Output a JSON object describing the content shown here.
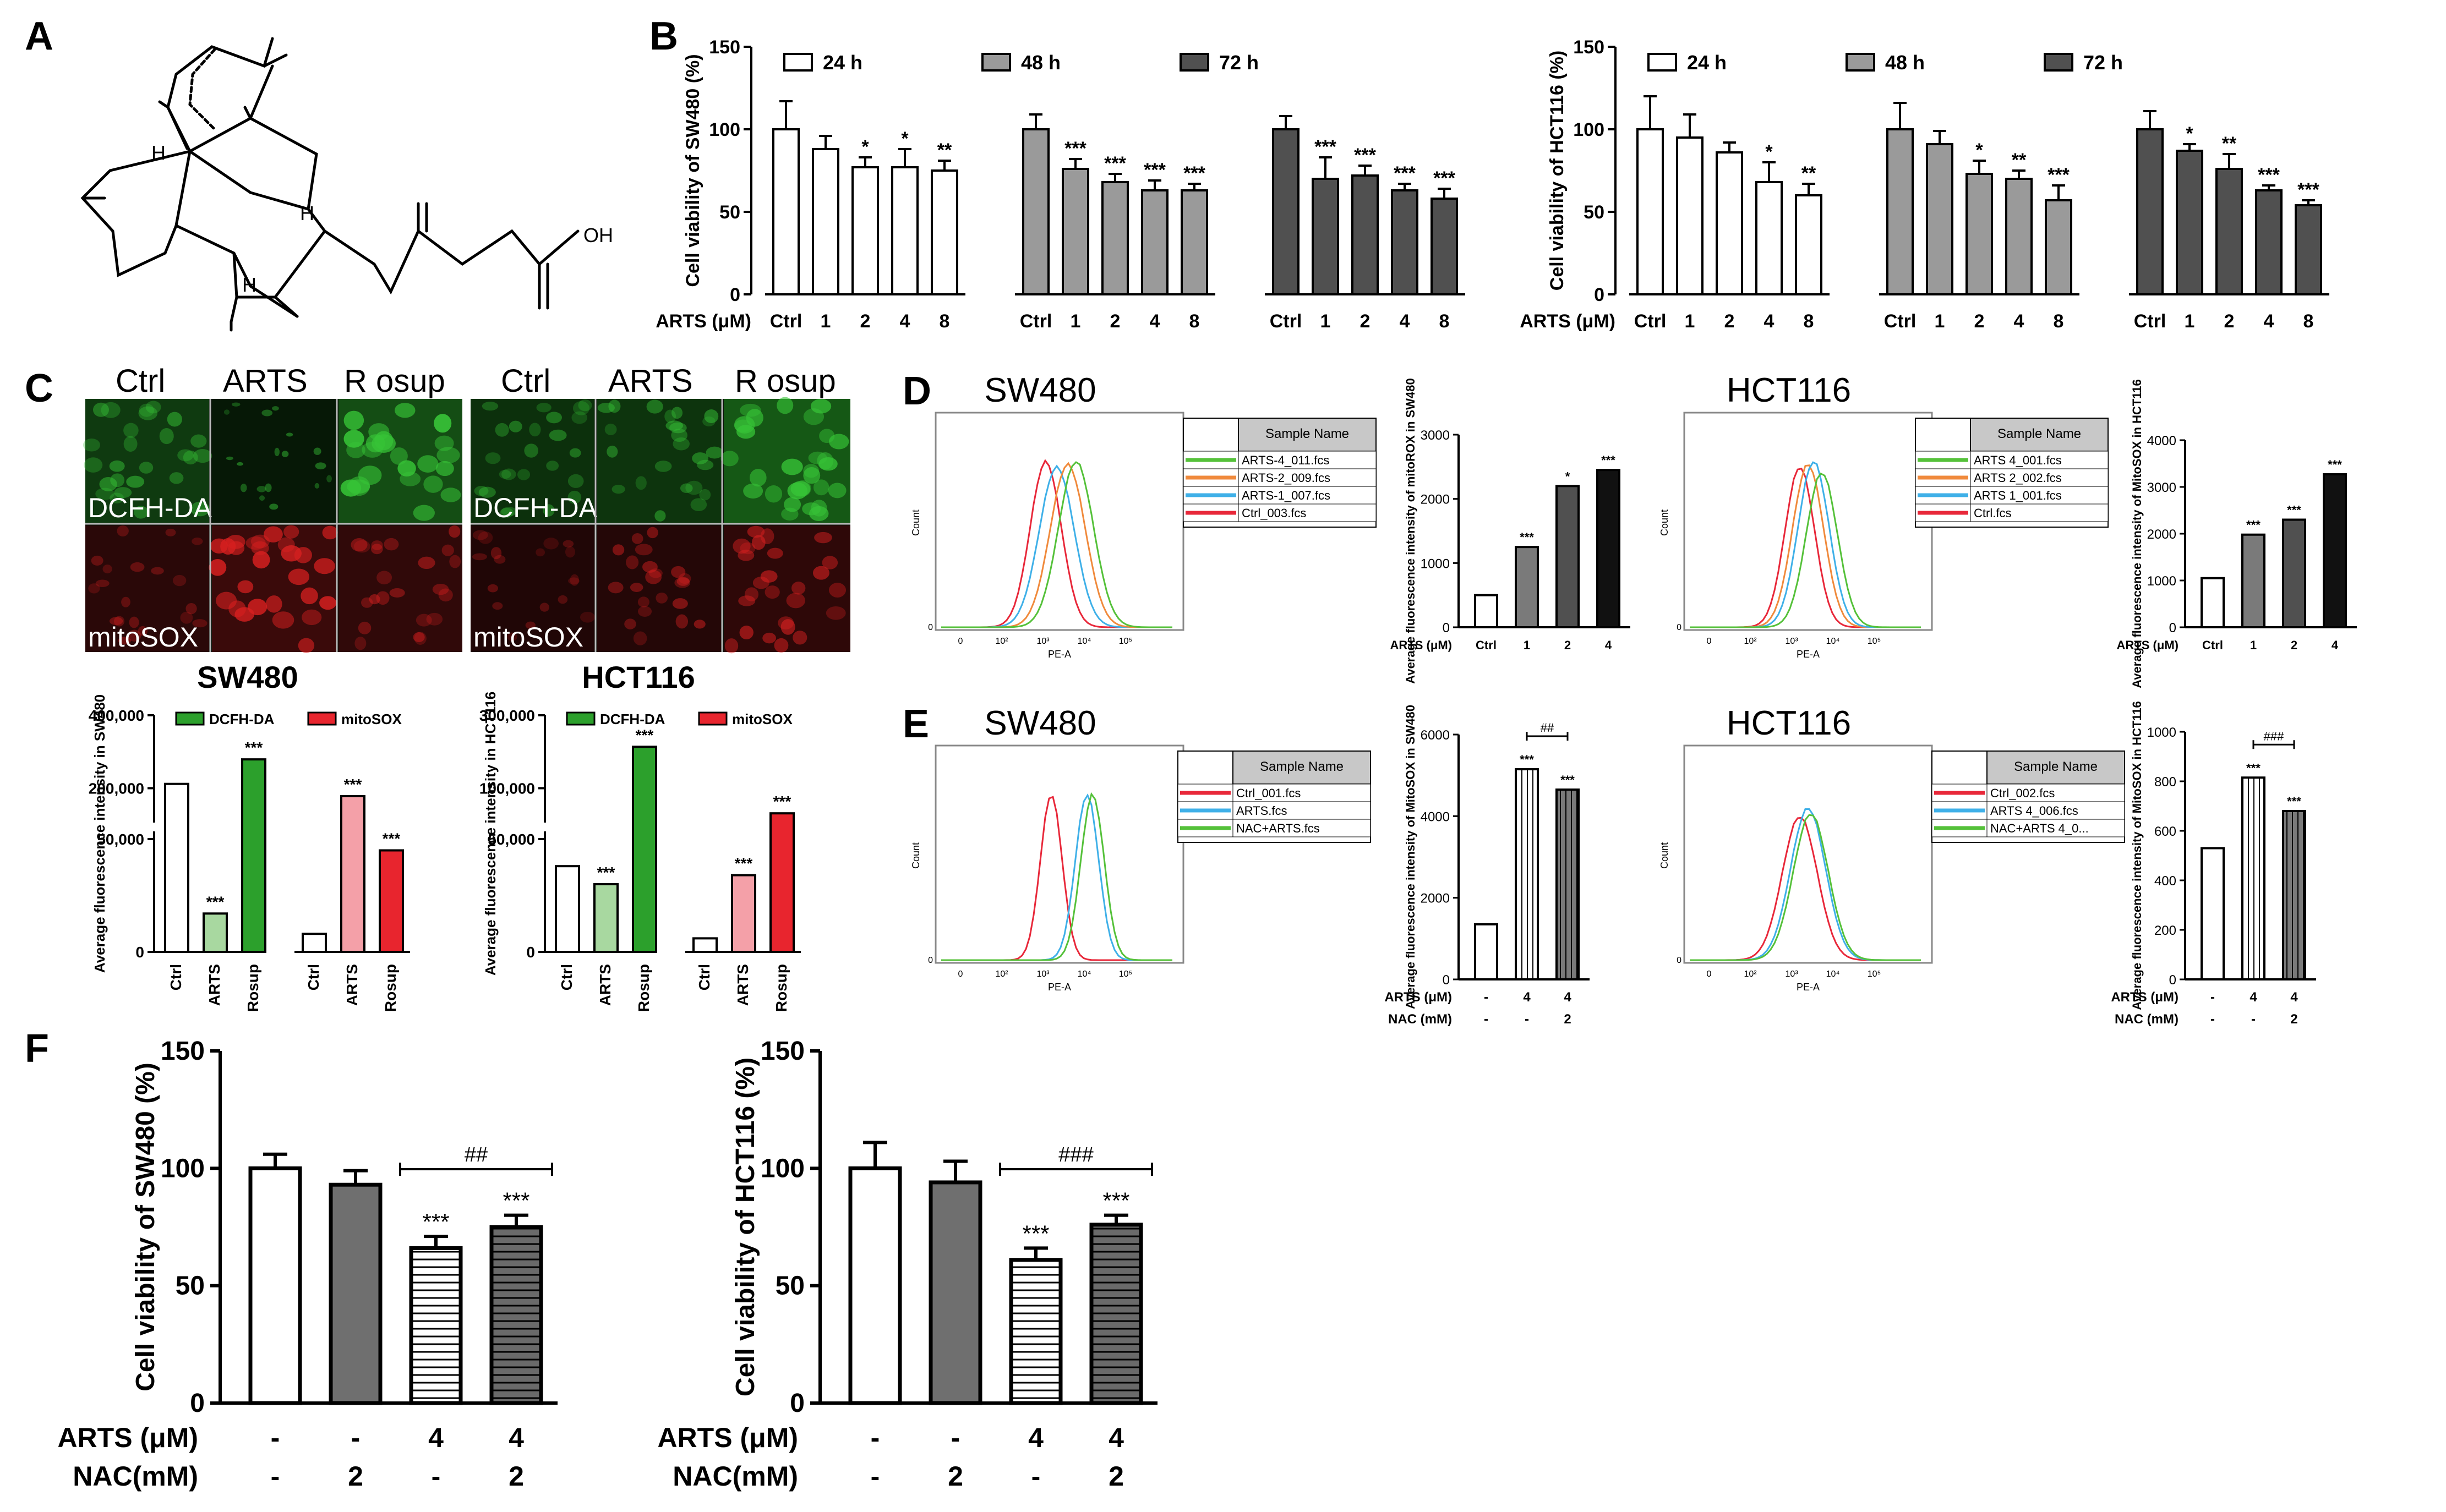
{
  "figure": {
    "panel_letters": [
      "A",
      "B",
      "C",
      "D",
      "E",
      "F"
    ],
    "colors": {
      "white_bar": "#ffffff",
      "light_gray": "#9a9a9a",
      "mid_gray": "#7a7a7a",
      "dark_gray": "#505050",
      "black_bar": "#111111",
      "dcfh_green": "#2ca02c",
      "light_green": "#a8d8a0",
      "mitosox_red": "#e8252e",
      "pink": "#f4a0a8",
      "cyto_green": "#37c437",
      "cyto_red": "#d82020"
    }
  },
  "panel_a": {
    "labels": {
      "h1": "H",
      "h2": "H",
      "h3": "H",
      "oh": "OH"
    }
  },
  "panel_b": {
    "legend": [
      "24 h",
      "48 h",
      "72 h"
    ],
    "x_prefix": "ARTS (μM)",
    "charts": [
      {
        "ylabel": "Cell viability of SW480 (%)",
        "yticks": [
          "0",
          "50",
          "100",
          "150"
        ],
        "ylim": [
          0,
          150
        ],
        "categories": [
          "Ctrl",
          "1",
          "2",
          "4",
          "8"
        ],
        "groups": [
          {
            "name": "24 h",
            "values": [
              100,
              88,
              77,
              77,
              75
            ],
            "errors": [
              17,
              8,
              6,
              11,
              6
            ],
            "sig": [
              "",
              "",
              "*",
              "*",
              "**"
            ]
          },
          {
            "name": "48 h",
            "values": [
              100,
              76,
              68,
              63,
              63
            ],
            "errors": [
              9,
              6,
              5,
              6,
              4
            ],
            "sig": [
              "",
              "***",
              "***",
              "***",
              "***"
            ]
          },
          {
            "name": "72 h",
            "values": [
              100,
              70,
              72,
              63,
              58
            ],
            "errors": [
              8,
              13,
              6,
              4,
              6
            ],
            "sig": [
              "",
              "***",
              "***",
              "***",
              "***"
            ]
          }
        ]
      },
      {
        "ylabel": "Cell viability of HCT116 (%)",
        "yticks": [
          "0",
          "50",
          "100",
          "150"
        ],
        "ylim": [
          0,
          150
        ],
        "categories": [
          "Ctrl",
          "1",
          "2",
          "4",
          "8"
        ],
        "groups": [
          {
            "name": "24 h",
            "values": [
              100,
              95,
              86,
              68,
              60
            ],
            "errors": [
              20,
              14,
              6,
              12,
              7
            ],
            "sig": [
              "",
              "",
              "",
              "*",
              "**"
            ]
          },
          {
            "name": "48 h",
            "values": [
              100,
              91,
              73,
              70,
              57
            ],
            "errors": [
              16,
              8,
              8,
              5,
              9
            ],
            "sig": [
              "",
              "",
              "*",
              "**",
              "***"
            ]
          },
          {
            "name": "72 h",
            "values": [
              100,
              87,
              76,
              63,
              54
            ],
            "errors": [
              11,
              4,
              9,
              3,
              3
            ],
            "sig": [
              "",
              "*",
              "**",
              "***",
              "***"
            ]
          }
        ]
      }
    ]
  },
  "panel_c": {
    "left": {
      "headers": [
        "Ctrl",
        "ARTS",
        "R osup"
      ],
      "row_labels": [
        "DCFH-DA",
        "mitoSOX"
      ],
      "chart_title": "SW480",
      "legend": [
        "DCFH-DA",
        "mitoSOX"
      ],
      "ylabel": "Average fluorescence intensity in SW480",
      "yticks": [
        "0",
        "50,000",
        "200,000",
        "400,000"
      ],
      "categories": [
        "Ctrl",
        "ARTS",
        "Rosup",
        "Ctrl",
        "ARTS",
        "Rosup"
      ],
      "values": [
        230000,
        17000,
        310000,
        8000,
        190000,
        45000
      ],
      "sig": [
        "",
        "***",
        "***",
        "",
        "***",
        "***"
      ]
    },
    "right": {
      "headers": [
        "Ctrl",
        "ARTS",
        "R osup"
      ],
      "row_labels": [
        "DCFH-DA",
        "mitoSOX"
      ],
      "chart_title": "HCT116",
      "legend": [
        "DCFH-DA",
        "mitoSOX"
      ],
      "ylabel": "Average fluorescence intensity in HCT116",
      "yticks": [
        "0",
        "50,000",
        "100,000",
        "300,000"
      ],
      "categories": [
        "Ctrl",
        "ARTS",
        "Rosup",
        "Ctrl",
        "ARTS",
        "Rosup"
      ],
      "values": [
        38000,
        30000,
        265000,
        6000,
        34000,
        110000
      ],
      "sig": [
        "",
        "***",
        "***",
        "",
        "***",
        "***"
      ]
    }
  },
  "panel_d": {
    "left": {
      "title": "SW480",
      "table_header": "Sample Name",
      "samples": [
        "ARTS-4_011.fcs",
        "ARTS-2_009.fcs",
        "ARTS-1_007.fcs",
        "Ctrl_003.fcs"
      ],
      "sample_colors": [
        "#55c13a",
        "#f08a3c",
        "#3fb0e8",
        "#e8283a"
      ],
      "x_label": "PE-A",
      "y_label": "Count",
      "bar_ylabel": "Average fluorescence intensity of mitoROX in SW480",
      "x_prefix": "ARTS (μM)",
      "yticks": [
        "0",
        "1000",
        "2000",
        "3000"
      ],
      "categories": [
        "Ctrl",
        "1",
        "2",
        "4"
      ],
      "values": [
        500,
        1250,
        2200,
        2450
      ],
      "sig": [
        "",
        "***",
        "*",
        "***"
      ]
    },
    "right": {
      "title": "HCT116",
      "table_header": "Sample Name",
      "samples": [
        "ARTS 4_001.fcs",
        "ARTS 2_002.fcs",
        "ARTS 1_001.fcs",
        "Ctrl.fcs"
      ],
      "sample_colors": [
        "#55c13a",
        "#f08a3c",
        "#3fb0e8",
        "#e8283a"
      ],
      "x_label": "PE-A",
      "y_label": "Count",
      "bar_ylabel": "Average fluorescence intensity of MitoSOX in HCT116",
      "x_prefix": "ARTS (μM)",
      "yticks": [
        "0",
        "1000",
        "2000",
        "3000",
        "4000"
      ],
      "categories": [
        "Ctrl",
        "1",
        "2",
        "4"
      ],
      "values": [
        1050,
        1980,
        2300,
        3270
      ],
      "sig": [
        "",
        "***",
        "***",
        "***"
      ]
    }
  },
  "panel_e": {
    "left": {
      "title": "SW480",
      "table_header": "Sample Name",
      "samples": [
        "Ctrl_001.fcs",
        "ARTS.fcs",
        "NAC+ARTS.fcs"
      ],
      "sample_colors": [
        "#e8283a",
        "#3fb0e8",
        "#55c13a"
      ],
      "x_label": "PE-A",
      "y_label": "Count",
      "bar_ylabel": "Average fluorescence intensity of MitoSOX in SW480",
      "row1_label": "ARTS (μM)",
      "row2_label": "NAC (mM)",
      "row1": [
        "-",
        "4",
        "4"
      ],
      "row2": [
        "-",
        "-",
        "2"
      ],
      "yticks": [
        "0",
        "2000",
        "4000",
        "6000"
      ],
      "values": [
        1350,
        5150,
        4650
      ],
      "sig": [
        "",
        "***",
        "***"
      ],
      "bracket": "##"
    },
    "right": {
      "title": "HCT116",
      "table_header": "Sample Name",
      "samples": [
        "Ctrl_002.fcs",
        "ARTS 4_006.fcs",
        "NAC+ARTS 4_0..."
      ],
      "sample_colors": [
        "#e8283a",
        "#3fb0e8",
        "#55c13a"
      ],
      "x_label": "PE-A",
      "y_label": "Count",
      "bar_ylabel": "Average fluorescence intensity of MitoSOX in HCT116",
      "row1_label": "ARTS (μM)",
      "row2_label": "NAC (mM)",
      "row1": [
        "-",
        "4",
        "4"
      ],
      "row2": [
        "-",
        "-",
        "2"
      ],
      "yticks": [
        "0",
        "200",
        "400",
        "600",
        "800",
        "1000"
      ],
      "values": [
        530,
        815,
        680
      ],
      "sig": [
        "",
        "***",
        "***"
      ],
      "bracket": "###"
    }
  },
  "panel_f": {
    "row1_label": "ARTS (μM)",
    "row2_label": "NAC(mM)",
    "row1": [
      "-",
      "-",
      "4",
      "4"
    ],
    "row2": [
      "-",
      "2",
      "-",
      "2"
    ],
    "charts": [
      {
        "ylabel": "Cell viability of SW480 (%)",
        "yticks": [
          "0",
          "50",
          "100",
          "150"
        ],
        "values": [
          100,
          93,
          66,
          75
        ],
        "errors": [
          6,
          6,
          5,
          5
        ],
        "sig": [
          "",
          "",
          "***",
          "***"
        ],
        "bracket": "##"
      },
      {
        "ylabel": "Cell viability of HCT116 (%)",
        "yticks": [
          "0",
          "50",
          "100",
          "150"
        ],
        "values": [
          100,
          94,
          61,
          76
        ],
        "errors": [
          11,
          9,
          5,
          4
        ],
        "sig": [
          "",
          "",
          "***",
          "***"
        ],
        "bracket": "###"
      }
    ]
  },
  "chart_data": [
    {
      "type": "bar",
      "title": "",
      "ylabel": "Cell viability of SW480 (%)",
      "categories": [
        "Ctrl",
        "1",
        "2",
        "4",
        "8"
      ],
      "ylim": [
        0,
        150
      ],
      "series": [
        {
          "name": "24 h",
          "values": [
            100,
            88,
            77,
            77,
            75
          ]
        },
        {
          "name": "48 h",
          "values": [
            100,
            76,
            68,
            63,
            63
          ]
        },
        {
          "name": "72 h",
          "values": [
            100,
            70,
            72,
            63,
            58
          ]
        }
      ]
    },
    {
      "type": "bar",
      "title": "",
      "ylabel": "Cell viability of HCT116 (%)",
      "categories": [
        "Ctrl",
        "1",
        "2",
        "4",
        "8"
      ],
      "ylim": [
        0,
        150
      ],
      "series": [
        {
          "name": "24 h",
          "values": [
            100,
            95,
            86,
            68,
            60
          ]
        },
        {
          "name": "48 h",
          "values": [
            100,
            91,
            73,
            70,
            57
          ]
        },
        {
          "name": "72 h",
          "values": [
            100,
            87,
            76,
            63,
            54
          ]
        }
      ]
    },
    {
      "type": "bar",
      "title": "SW480",
      "ylabel": "Average fluorescence intensity in SW480",
      "categories": [
        "Ctrl",
        "ARTS",
        "Rosup"
      ],
      "series": [
        {
          "name": "DCFH-DA",
          "values": [
            230000,
            17000,
            310000
          ]
        },
        {
          "name": "mitoSOX",
          "values": [
            8000,
            190000,
            45000
          ]
        }
      ]
    },
    {
      "type": "bar",
      "title": "HCT116",
      "ylabel": "Average fluorescence intensity in HCT116",
      "categories": [
        "Ctrl",
        "ARTS",
        "Rosup"
      ],
      "series": [
        {
          "name": "DCFH-DA",
          "values": [
            38000,
            30000,
            265000
          ]
        },
        {
          "name": "mitoSOX",
          "values": [
            6000,
            34000,
            110000
          ]
        }
      ]
    },
    {
      "type": "bar",
      "ylabel": "Average fluorescence intensity of mitoROX in SW480",
      "categories": [
        "Ctrl",
        "1",
        "2",
        "4"
      ],
      "values": [
        500,
        1250,
        2200,
        2450
      ]
    },
    {
      "type": "bar",
      "ylabel": "Average fluorescence intensity of MitoSOX in HCT116",
      "categories": [
        "Ctrl",
        "1",
        "2",
        "4"
      ],
      "values": [
        1050,
        1980,
        2300,
        3270
      ]
    },
    {
      "type": "bar",
      "ylabel": "Average fluorescence intensity of MitoSOX in SW480",
      "values": [
        1350,
        5150,
        4650
      ]
    },
    {
      "type": "bar",
      "ylabel": "Average fluorescence intensity of MitoSOX in HCT116",
      "values": [
        530,
        815,
        680
      ]
    },
    {
      "type": "bar",
      "ylabel": "Cell viability of SW480 (%)",
      "values": [
        100,
        93,
        66,
        75
      ],
      "ylim": [
        0,
        150
      ]
    },
    {
      "type": "bar",
      "ylabel": "Cell viability of HCT116 (%)",
      "values": [
        100,
        94,
        61,
        76
      ],
      "ylim": [
        0,
        150
      ]
    }
  ]
}
